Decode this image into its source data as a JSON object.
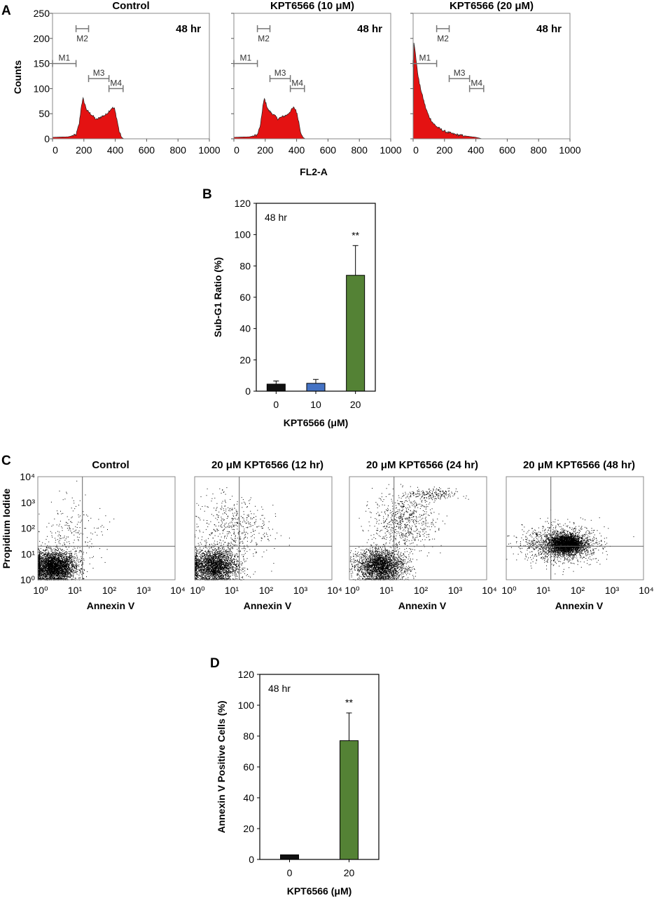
{
  "panels": {
    "a": "A",
    "b": "B",
    "c": "C",
    "d": "D"
  },
  "colors": {
    "histogram": "#e41212",
    "ctrl": "#111111",
    "kpt10": "#4472c4",
    "kpt20": "#548235",
    "marker": "#777777"
  },
  "chart_data": [
    {
      "type": "area",
      "panel": "A",
      "ylabel": "Counts",
      "xlabel": "FL2-A",
      "xlim": [
        0,
        1000
      ],
      "ylim": [
        0,
        250
      ],
      "x_ticks": [
        "0",
        "200",
        "400",
        "600",
        "800",
        "1000"
      ],
      "y_ticks": [
        "0",
        "50",
        "100",
        "150",
        "200",
        "250"
      ],
      "markers": [
        {
          "label": "M1",
          "range": [
            0,
            150
          ],
          "y": 150
        },
        {
          "label": "M2",
          "range": [
            150,
            230
          ],
          "y": 225
        },
        {
          "label": "M3",
          "range": [
            230,
            360
          ],
          "y": 120
        },
        {
          "label": "M4",
          "range": [
            360,
            450
          ],
          "y": 100
        }
      ],
      "subplots": [
        {
          "title": "Control",
          "annotation": "48 hr",
          "x": [
            0,
            100,
            150,
            170,
            185,
            195,
            205,
            220,
            250,
            280,
            310,
            340,
            360,
            380,
            395,
            410,
            425,
            440,
            455
          ],
          "y": [
            3,
            4,
            8,
            30,
            68,
            80,
            70,
            56,
            48,
            38,
            44,
            48,
            55,
            62,
            60,
            40,
            15,
            3,
            0
          ]
        },
        {
          "title": "KPT6566 (10 μM)",
          "annotation": "48 hr",
          "x": [
            0,
            100,
            150,
            170,
            185,
            195,
            205,
            220,
            250,
            280,
            310,
            340,
            360,
            380,
            395,
            410,
            425,
            440,
            455
          ],
          "y": [
            3,
            4,
            8,
            28,
            66,
            80,
            70,
            57,
            49,
            40,
            44,
            48,
            55,
            62,
            58,
            40,
            15,
            3,
            0
          ]
        },
        {
          "title": "KPT6566 (20 μM)",
          "annotation": "48 hr",
          "x": [
            0,
            5,
            15,
            25,
            40,
            60,
            80,
            100,
            130,
            160,
            200,
            250,
            300,
            350,
            400,
            440
          ],
          "y": [
            0,
            190,
            170,
            140,
            110,
            85,
            62,
            45,
            30,
            22,
            15,
            10,
            7,
            5,
            3,
            0
          ]
        }
      ]
    },
    {
      "type": "bar",
      "panel": "B",
      "annotation": "48 hr",
      "categories": [
        "0",
        "10",
        "20"
      ],
      "values": [
        4.5,
        5.0,
        74
      ],
      "errors": [
        2,
        2.5,
        19
      ],
      "significance": [
        "",
        "",
        "**"
      ],
      "xlabel": "KPT6566 (μM)",
      "ylabel": "Sub-G1 Ratio (%)",
      "ylim": [
        0,
        120
      ],
      "y_ticks": [
        "0",
        "20",
        "40",
        "60",
        "80",
        "100",
        "120"
      ]
    },
    {
      "type": "scatter",
      "panel": "C",
      "xlabel": "Annexin V",
      "ylabel": "Propidium Iodide",
      "x_ticks": [
        "10⁰",
        "10¹",
        "10²",
        "10³",
        "10⁴"
      ],
      "y_ticks": [
        "10⁰",
        "10¹",
        "10²",
        "10³",
        "10⁴"
      ],
      "xlim_log": [
        0,
        4
      ],
      "ylim_log": [
        0,
        4
      ],
      "quadrant_gate": {
        "x": 1.3,
        "y": 1.3
      },
      "subplots": [
        {
          "title": "Control",
          "clusters": [
            {
              "cx": 0.45,
              "cy": 0.5,
              "sx": 0.32,
              "sy": 0.3,
              "n": 3500
            },
            {
              "cx": 1.0,
              "cy": 1.8,
              "sx": 0.45,
              "sy": 0.7,
              "n": 220
            }
          ]
        },
        {
          "title": "20 μM KPT6566 (12 hr)",
          "clusters": [
            {
              "cx": 0.55,
              "cy": 0.55,
              "sx": 0.35,
              "sy": 0.32,
              "n": 3300
            },
            {
              "cx": 1.1,
              "cy": 2.0,
              "sx": 0.5,
              "sy": 0.65,
              "n": 500
            }
          ]
        },
        {
          "title": "20 μM KPT6566 (24 hr)",
          "clusters": [
            {
              "cx": 0.9,
              "cy": 0.55,
              "sx": 0.35,
              "sy": 0.32,
              "n": 3300
            },
            {
              "cx": 1.6,
              "cy": 2.3,
              "sx": 0.45,
              "sy": 0.55,
              "n": 700
            },
            {
              "cx": 2.4,
              "cy": 3.3,
              "sx": 0.35,
              "sy": 0.12,
              "n": 200
            }
          ]
        },
        {
          "title": "20 μM KPT6566 (48 hr)",
          "clusters": [
            {
              "cx": 1.75,
              "cy": 1.4,
              "sx": 0.25,
              "sy": 0.18,
              "n": 2600
            },
            {
              "cx": 1.6,
              "cy": 1.4,
              "sx": 0.55,
              "sy": 0.35,
              "n": 1400
            }
          ]
        }
      ]
    },
    {
      "type": "bar",
      "panel": "D",
      "annotation": "48 hr",
      "categories": [
        "0",
        "20"
      ],
      "values": [
        3,
        77
      ],
      "errors": [
        0,
        18
      ],
      "significance": [
        "",
        "**"
      ],
      "xlabel": "KPT6566 (μM)",
      "ylabel": "Annexin V Positive Cells (%)",
      "ylim": [
        0,
        120
      ],
      "y_ticks": [
        "0",
        "20",
        "40",
        "60",
        "80",
        "100",
        "120"
      ]
    }
  ]
}
